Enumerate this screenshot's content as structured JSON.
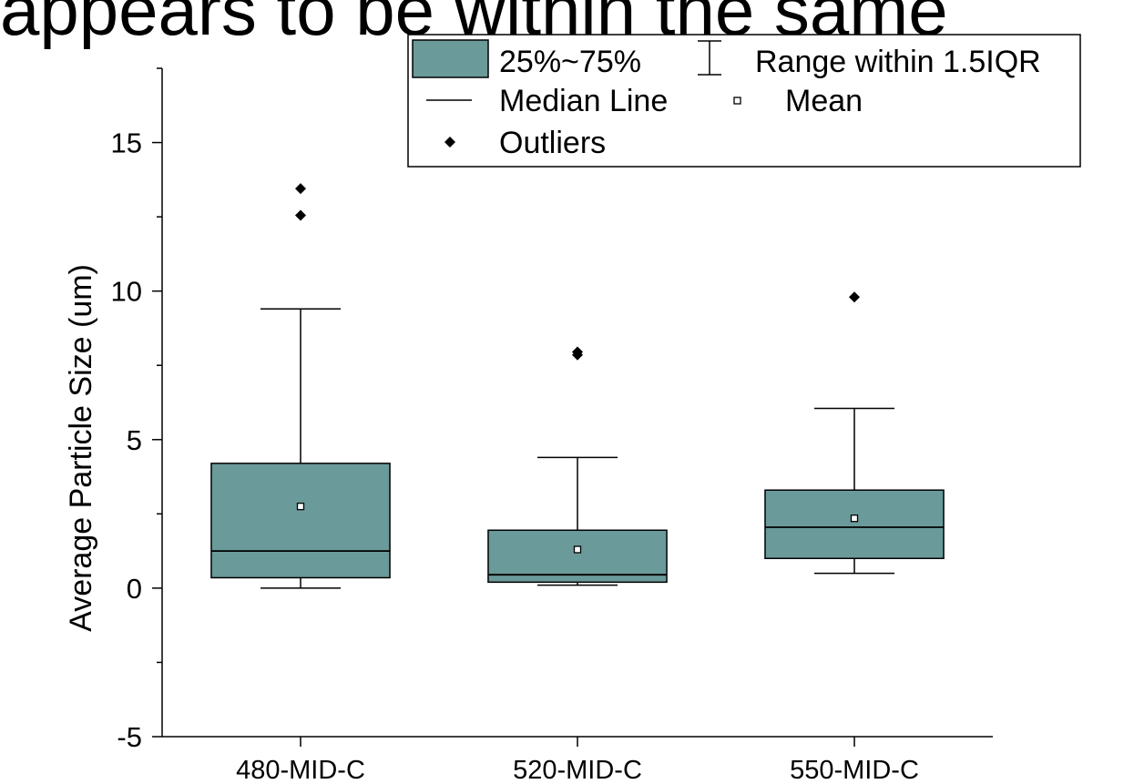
{
  "header_fragment": "appears to be within the same",
  "chart_data": {
    "type": "box",
    "categories": [
      "480-MID-C",
      "520-MID-C",
      "550-MID-C"
    ],
    "ylabel": "Average Particle Size (um)",
    "xlabel": "",
    "ylim": [
      -5,
      17.5
    ],
    "yticks": [
      -5,
      0,
      5,
      10,
      15
    ],
    "grid": false,
    "box_color": "#6a9a9a",
    "boxes": [
      {
        "category": "480-MID-C",
        "whisker_low": 0.0,
        "q1": 0.35,
        "median": 1.25,
        "q3": 4.2,
        "whisker_high": 9.4,
        "mean": 2.75,
        "outliers": [
          12.55,
          13.45
        ]
      },
      {
        "category": "520-MID-C",
        "whisker_low": 0.1,
        "q1": 0.2,
        "median": 0.45,
        "q3": 1.95,
        "whisker_high": 4.4,
        "mean": 1.3,
        "outliers": [
          7.85,
          7.95
        ]
      },
      {
        "category": "550-MID-C",
        "whisker_low": 0.5,
        "q1": 1.0,
        "median": 2.05,
        "q3": 3.3,
        "whisker_high": 6.05,
        "mean": 2.35,
        "outliers": [
          9.8
        ]
      }
    ],
    "legend": {
      "position": "top-right",
      "box_label": "25%~75%",
      "range_label": "Range within 1.5IQR",
      "median_label": "Median Line",
      "mean_label": "Mean",
      "outlier_label": "Outliers"
    }
  }
}
